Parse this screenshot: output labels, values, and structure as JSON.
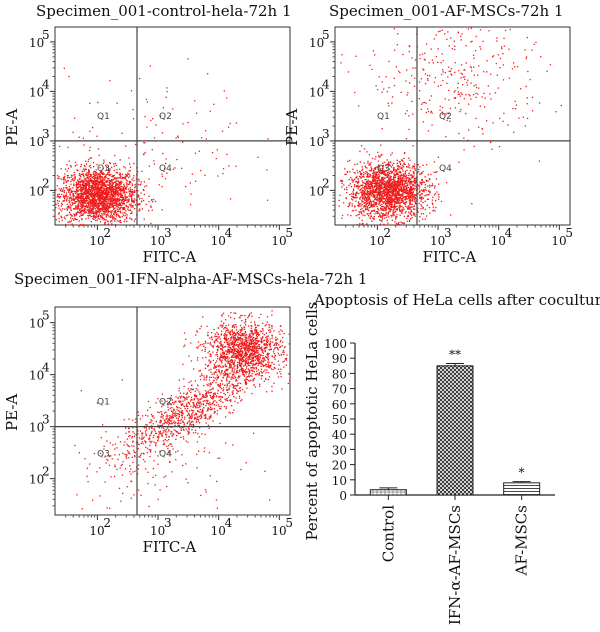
{
  "flow_panels": [
    {
      "title": "Specimen_001-control-hela-72h 1",
      "xlabel": "FITC-A",
      "ylabel": "PE-A",
      "quadrants": [
        "Q1",
        "Q2",
        "Q3",
        "Q4"
      ]
    },
    {
      "title": "Specimen_001-AF-MSCs-72h 1",
      "xlabel": "FITC-A",
      "ylabel": "PE-A",
      "quadrants": [
        "Q1",
        "Q2",
        "Q3",
        "Q4"
      ]
    },
    {
      "title": "Specimen_001-IFN-alpha-AF-MSCs-hela-72h 1",
      "xlabel": "FITC-A",
      "ylabel": "PE-A",
      "quadrants": [
        "Q1",
        "Q2",
        "Q3",
        "Q4"
      ]
    }
  ],
  "flow_ticks": [
    "10",
    "10",
    "10",
    "10"
  ],
  "flow_tick_exps": [
    "2",
    "3",
    "4",
    "5"
  ],
  "dot_color": "#ee1c1c",
  "chart_data": [
    {
      "type": "scatter",
      "title": "Specimen_001-control-hela-72h 1",
      "xlabel": "FITC-A",
      "ylabel": "PE-A",
      "xscale": "log",
      "yscale": "log",
      "xlim": [
        20,
        150000
      ],
      "ylim": [
        20,
        200000
      ],
      "quadrant_gate": {
        "x": 450,
        "y": 1000
      },
      "populations": [
        {
          "center": [
            100,
            80
          ],
          "spread": "dense, low",
          "share": 0.95
        },
        {
          "center": [
            1000,
            1000
          ],
          "spread": "sparse, scattered",
          "share": 0.05
        }
      ]
    },
    {
      "type": "scatter",
      "title": "Specimen_001-AF-MSCs-72h 1",
      "xlabel": "FITC-A",
      "ylabel": "PE-A",
      "xscale": "log",
      "yscale": "log",
      "xlim": [
        20,
        150000
      ],
      "ylim": [
        20,
        200000
      ],
      "quadrant_gate": {
        "x": 450,
        "y": 1000
      },
      "populations": [
        {
          "center": [
            150,
            100
          ],
          "spread": "dense, low",
          "share": 0.85
        },
        {
          "center": [
            2000,
            20000
          ],
          "spread": "sparse, scattered",
          "share": 0.15
        }
      ]
    },
    {
      "type": "scatter",
      "title": "Specimen_001-IFN-alpha-AF-MSCs-hela-72h 1",
      "xlabel": "FITC-A",
      "ylabel": "PE-A",
      "xscale": "log",
      "yscale": "log",
      "xlim": [
        20,
        150000
      ],
      "ylim": [
        20,
        200000
      ],
      "quadrant_gate": {
        "x": 450,
        "y": 1000
      },
      "populations": [
        {
          "center": [
            25000,
            30000
          ],
          "spread": "dense, upper right",
          "share": 0.55
        },
        {
          "center": [
            3000,
            2000
          ],
          "spread": "diagonal band",
          "share": 0.4
        },
        {
          "center": [
            600,
            150
          ],
          "spread": "sparse",
          "share": 0.05
        }
      ]
    },
    {
      "type": "bar",
      "title": "Apoptosis of HeLa cells after coculture",
      "xlabel": "",
      "ylabel": "Percent of apoptotic HeLa cells",
      "categories": [
        "Control",
        "IFN-α-AF-MSCs",
        "AF-MSCs"
      ],
      "values": [
        3.5,
        85,
        8
      ],
      "errors": [
        1.2,
        1.5,
        0.8
      ],
      "annotations": [
        "",
        "**",
        "*"
      ],
      "patterns": [
        "light-cross",
        "crosshatch",
        "horizontal"
      ],
      "ylim": [
        0,
        100
      ],
      "yticks": [
        0,
        10,
        20,
        30,
        40,
        50,
        60,
        70,
        80,
        90,
        100
      ]
    }
  ]
}
